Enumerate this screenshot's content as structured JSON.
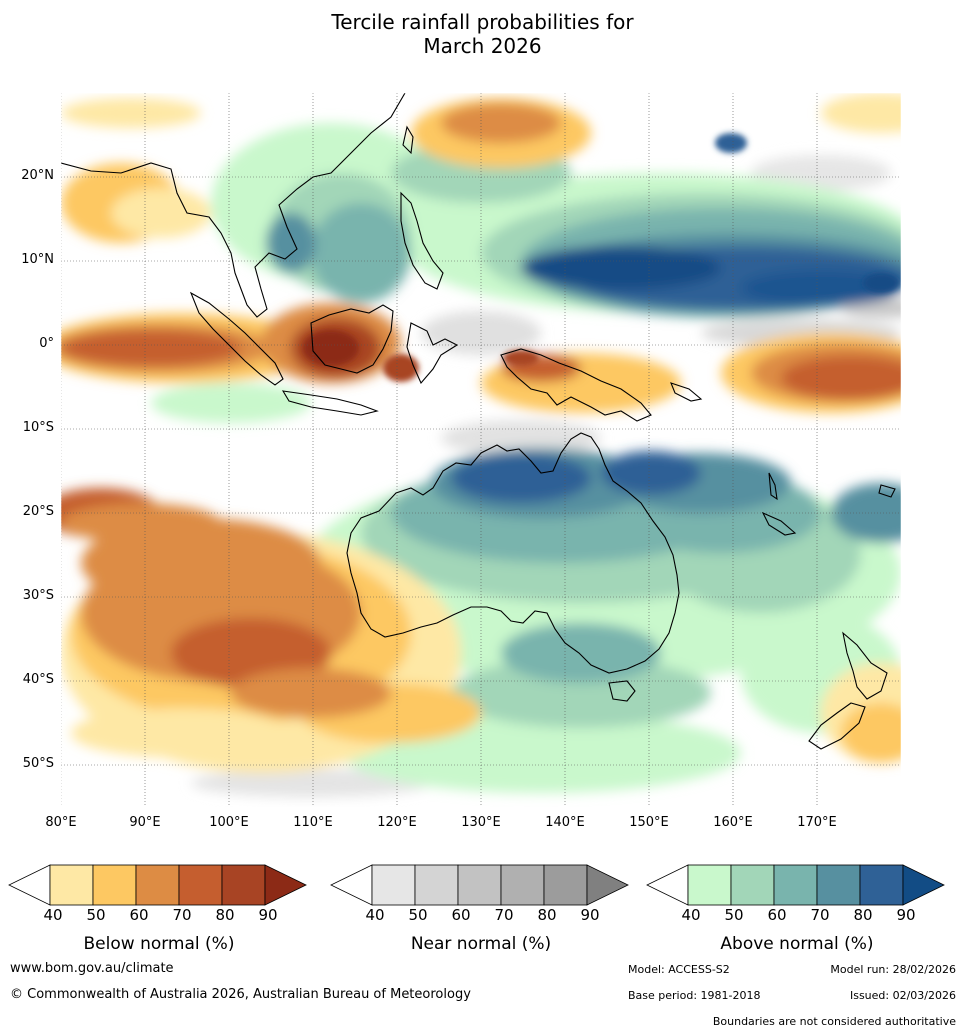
{
  "title": {
    "line1": "Tercile rainfall probabilities for",
    "line2": "March 2026"
  },
  "map": {
    "region": "Australia and Maritime Continent",
    "lat_labels": [
      "20°N",
      "10°N",
      "0°",
      "10°S",
      "20°S",
      "30°S",
      "40°S",
      "50°S"
    ],
    "lon_labels": [
      "80°E",
      "90°E",
      "100°E",
      "110°E",
      "120°E",
      "130°E",
      "140°E",
      "150°E",
      "160°E",
      "170°E"
    ],
    "extent": {
      "lon": [
        80,
        180
      ],
      "lat": [
        -55,
        30
      ]
    },
    "grid": true
  },
  "legends": [
    {
      "name": "Below normal (%)",
      "ticks": [
        "40",
        "50",
        "60",
        "70",
        "80",
        "90"
      ],
      "colors": [
        "#ffffff",
        "#fee8a5",
        "#fdc862",
        "#dd8c44",
        "#c55e2f",
        "#a84424",
        "#8c2a16"
      ]
    },
    {
      "name": "Near normal (%)",
      "ticks": [
        "40",
        "50",
        "60",
        "70",
        "80",
        "90"
      ],
      "colors": [
        "#ffffff",
        "#e6e6e6",
        "#d4d4d4",
        "#c2c2c2",
        "#b0b0b0",
        "#9c9c9c",
        "#808080"
      ]
    },
    {
      "name": "Above normal (%)",
      "ticks": [
        "40",
        "50",
        "60",
        "70",
        "80",
        "90"
      ],
      "colors": [
        "#ffffff",
        "#c9f8cc",
        "#a2d6b8",
        "#79b4ad",
        "#5790a0",
        "#2f6196",
        "#124c85"
      ]
    }
  ],
  "footer": {
    "website": "www.bom.gov.au/climate",
    "copyright": "© Commonwealth of Australia 2026, Australian Bureau of Meteorology",
    "model": "Model: ACCESS-S2",
    "model_run": "Model run: 28/02/2026",
    "base_period": "Base period: 1981-2018",
    "issued": "Issued: 02/03/2026",
    "disclaimer": "Boundaries are not considered authoritative"
  }
}
